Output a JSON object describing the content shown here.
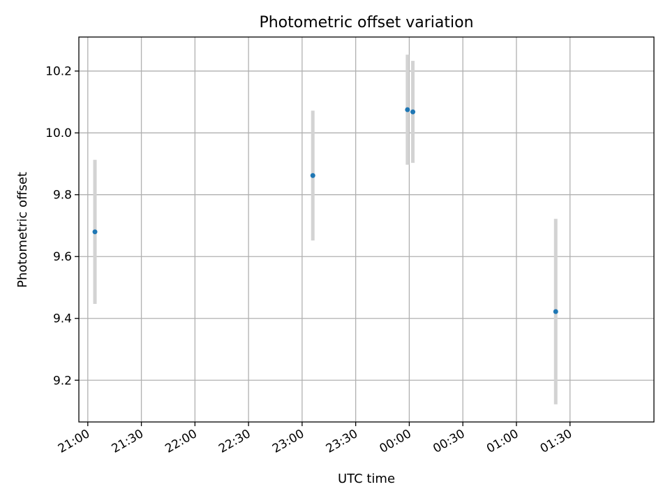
{
  "chart_data": {
    "type": "scatter",
    "title": "Photometric offset variation",
    "xlabel": "UTC time",
    "ylabel": "Photometric offset",
    "x_ticks": [
      "21:00",
      "21:30",
      "22:00",
      "22:30",
      "23:00",
      "23:30",
      "00:00",
      "00:30",
      "01:00",
      "01:30"
    ],
    "y_ticks": [
      9.2,
      9.4,
      9.6,
      9.8,
      10.0,
      10.2
    ],
    "xlim": [
      "20:55",
      "02:17"
    ],
    "ylim": [
      9.065,
      10.31
    ],
    "grid": true,
    "marker_color": "#1f77b4",
    "errorbar_color": "#d3d3d3",
    "points": [
      {
        "x": "21:04",
        "y": 9.68,
        "err": 0.233
      },
      {
        "x": "23:06",
        "y": 9.862,
        "err": 0.21
      },
      {
        "x": "23:59",
        "y": 10.075,
        "err": 0.178
      },
      {
        "x": "00:02",
        "y": 10.068,
        "err": 0.165
      },
      {
        "x": "01:22",
        "y": 9.422,
        "err": 0.3
      }
    ]
  }
}
